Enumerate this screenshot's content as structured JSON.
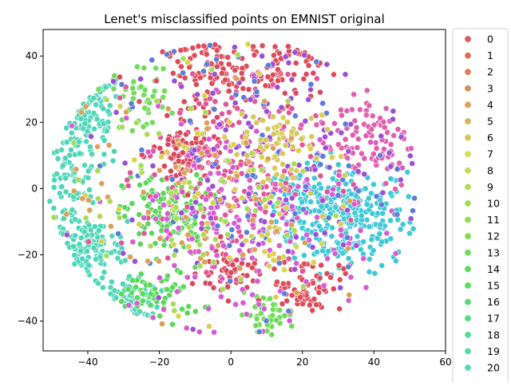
{
  "chart_data": {
    "type": "scatter",
    "title": "Lenet's misclassified points on EMNIST original",
    "xlabel": "",
    "ylabel": "",
    "xlim": [
      -52.5,
      60
    ],
    "ylim": [
      -49,
      48
    ],
    "xticks": [
      -40,
      -20,
      0,
      20,
      40,
      60
    ],
    "yticks": [
      -40,
      -20,
      0,
      20,
      40
    ],
    "grid": false,
    "legend": {
      "placement": "outside-right",
      "truncated": true
    },
    "legend_labels": [
      "0",
      "1",
      "2",
      "3",
      "4",
      "5",
      "6",
      "7",
      "8",
      "9",
      "10",
      "11",
      "12",
      "13",
      "14",
      "15",
      "16",
      "17",
      "18",
      "19",
      "20"
    ],
    "legend_colors": [
      "#db5f57",
      "#db6f57",
      "#db8057",
      "#db9057",
      "#dba157",
      "#dbb157",
      "#dbc257",
      "#d3db57",
      "#c2db57",
      "#b1db57",
      "#a1db57",
      "#90db57",
      "#80db57",
      "#6fdb57",
      "#5fdb57",
      "#57db5f",
      "#57db6f",
      "#57db80",
      "#57db90",
      "#57dba1",
      "#57dbb1"
    ],
    "clusters": [
      {
        "name": "cyan-right",
        "color": "#3ec9d6",
        "cx": 33,
        "cy": -9,
        "sx": 8,
        "sy": 8,
        "n": 260
      },
      {
        "name": "cyan-center",
        "color": "#3ec9d6",
        "cx": 20,
        "cy": -4,
        "sx": 5,
        "sy": 5,
        "n": 80
      },
      {
        "name": "teal-left-top",
        "color": "#4fd6b8",
        "cx": -40,
        "cy": 22,
        "sx": 5,
        "sy": 7,
        "n": 110
      },
      {
        "name": "teal-left-mid",
        "color": "#4fd6b8",
        "cx": -44,
        "cy": 2,
        "sx": 3.5,
        "sy": 8,
        "n": 100
      },
      {
        "name": "teal-left-low",
        "color": "#4fd6b8",
        "cx": -39,
        "cy": -18,
        "sx": 5,
        "sy": 4,
        "n": 110
      },
      {
        "name": "teal-bottom-left",
        "color": "#4fd6b8",
        "cx": -28,
        "cy": -34,
        "sx": 4,
        "sy": 4,
        "n": 80
      },
      {
        "name": "green-mid-left",
        "color": "#5cd65c",
        "cx": -18,
        "cy": -8,
        "sx": 6,
        "sy": 6,
        "n": 140
      },
      {
        "name": "green-low-left",
        "color": "#5cd65c",
        "cx": -20,
        "cy": -32,
        "sx": 6,
        "sy": 4,
        "n": 60
      },
      {
        "name": "green-top-left",
        "color": "#70dc59",
        "cx": -25,
        "cy": 28,
        "sx": 4,
        "sy": 5,
        "n": 45
      },
      {
        "name": "green-bottom-center",
        "color": "#6fdc58",
        "cx": 10,
        "cy": -38,
        "sx": 4,
        "sy": 3,
        "n": 40
      },
      {
        "name": "red-top-center",
        "color": "#dc4c5a",
        "cx": -3,
        "cy": 35,
        "sx": 8,
        "sy": 5,
        "n": 120
      },
      {
        "name": "red-top-right",
        "color": "#dc4c5a",
        "cx": 15,
        "cy": 36,
        "sx": 5,
        "sy": 5,
        "n": 60
      },
      {
        "name": "red-left-mid",
        "color": "#d9475f",
        "cx": -12,
        "cy": 10,
        "sx": 5,
        "sy": 5,
        "n": 120
      },
      {
        "name": "red-bottom",
        "color": "#d9475f",
        "cx": -1,
        "cy": -25,
        "sx": 4,
        "sy": 4,
        "n": 60
      },
      {
        "name": "red-bottom-right",
        "color": "#dc4c5a",
        "cx": 21,
        "cy": -29,
        "sx": 5,
        "sy": 4,
        "n": 70
      },
      {
        "name": "pink-center",
        "color": "#e0569a",
        "cx": 0,
        "cy": 5,
        "sx": 12,
        "sy": 14,
        "n": 200
      },
      {
        "name": "pink-right",
        "color": "#df5fb0",
        "cx": 38,
        "cy": 15,
        "sx": 7,
        "sy": 8,
        "n": 100
      },
      {
        "name": "magenta-scatter",
        "color": "#d65cd6",
        "cx": 5,
        "cy": -10,
        "sx": 18,
        "sy": 16,
        "n": 180
      },
      {
        "name": "violet-scatter",
        "color": "#9c4fd6",
        "cx": 10,
        "cy": 10,
        "sx": 20,
        "sy": 18,
        "n": 130
      },
      {
        "name": "blue-scatter",
        "color": "#5a7ed6",
        "cx": 5,
        "cy": 5,
        "sx": 20,
        "sy": 20,
        "n": 90
      },
      {
        "name": "yellow-center",
        "color": "#d6c85a",
        "cx": 12,
        "cy": 12,
        "sx": 6,
        "sy": 8,
        "n": 60
      },
      {
        "name": "yellow-scatter",
        "color": "#d9d24f",
        "cx": 0,
        "cy": 0,
        "sx": 18,
        "sy": 18,
        "n": 80
      },
      {
        "name": "orange-scatter",
        "color": "#dca057",
        "cx": -10,
        "cy": -5,
        "sx": 18,
        "sy": 16,
        "n": 70
      },
      {
        "name": "lime-scatter",
        "color": "#a8dc57",
        "cx": -10,
        "cy": 0,
        "sx": 18,
        "sy": 18,
        "n": 70
      }
    ]
  }
}
